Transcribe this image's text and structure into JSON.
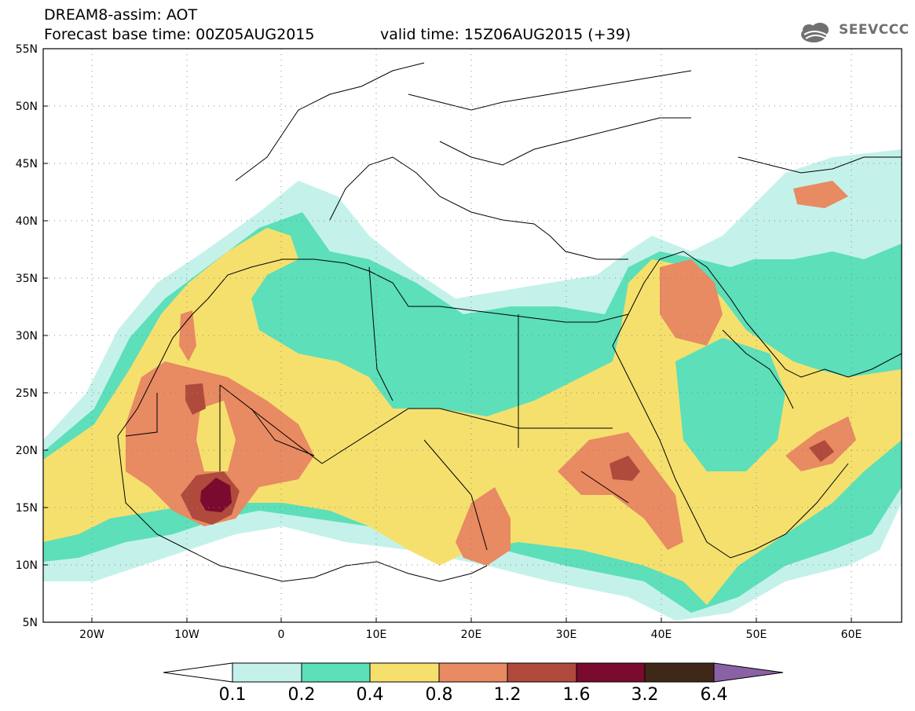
{
  "header": {
    "title": "DREAM8-assim: AOT",
    "base_time": "Forecast base time: 00Z05AUG2015",
    "valid_time": "valid time: 15Z06AUG2015 (+39)",
    "logo_text": "SEEVCCC"
  },
  "map": {
    "lon_range": [
      -25,
      65
    ],
    "lat_range": [
      5,
      55
    ],
    "lon_ticks": [
      "20W",
      "10W",
      "0",
      "10E",
      "20E",
      "30E",
      "40E",
      "50E",
      "60E"
    ],
    "lat_ticks": [
      "55N",
      "50N",
      "45N",
      "40N",
      "35N",
      "30N",
      "25N",
      "20N",
      "15N",
      "10N",
      "5N"
    ],
    "grid": "dotted"
  },
  "colorbar": {
    "labels": [
      "0.1",
      "0.2",
      "0.4",
      "0.8",
      "1.2",
      "1.6",
      "3.2",
      "6.4"
    ],
    "colors": [
      "#c4f2ea",
      "#5ddfb9",
      "#f5e06e",
      "#e88a62",
      "#b04a3c",
      "#7a0a2e",
      "#3f2818",
      "#8b61a6"
    ],
    "under_color": "#ffffff"
  }
}
